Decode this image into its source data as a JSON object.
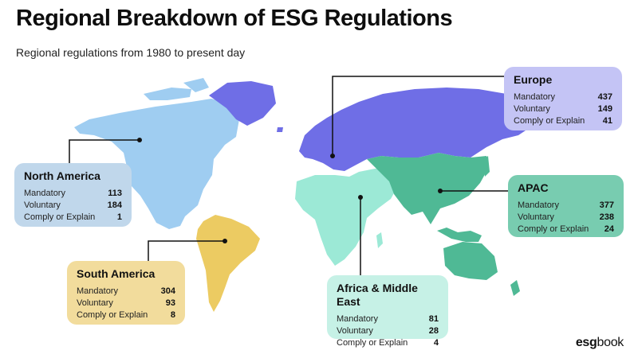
{
  "title": "Regional Breakdown of ESG Regulations",
  "subtitle": "Regional regulations from 1980 to present day",
  "logo": {
    "bold": "esg",
    "light": "book"
  },
  "colors": {
    "north_america": "#9fcdf1",
    "europe": "#6f6ee6",
    "apac": "#4fb995",
    "africa_middle_east": "#9ce9d6",
    "south_america": "#eccb62"
  },
  "regions": [
    {
      "key": "north_america",
      "name": "North America",
      "rows": [
        {
          "label": "Mandatory",
          "value": "113"
        },
        {
          "label": "Voluntary",
          "value": "184"
        },
        {
          "label": "Comply or Explain",
          "value": "1"
        }
      ]
    },
    {
      "key": "europe",
      "name": "Europe",
      "rows": [
        {
          "label": "Mandatory",
          "value": "437"
        },
        {
          "label": "Voluntary",
          "value": "149"
        },
        {
          "label": "Comply or Explain",
          "value": "41"
        }
      ]
    },
    {
      "key": "apac",
      "name": "APAC",
      "rows": [
        {
          "label": "Mandatory",
          "value": "377"
        },
        {
          "label": "Voluntary",
          "value": "238"
        },
        {
          "label": "Comply or Explain",
          "value": "24"
        }
      ]
    },
    {
      "key": "south_america",
      "name": "South America",
      "rows": [
        {
          "label": "Mandatory",
          "value": "304"
        },
        {
          "label": "Voluntary",
          "value": "93"
        },
        {
          "label": "Comply or Explain",
          "value": "8"
        }
      ]
    },
    {
      "key": "africa_middle_east",
      "name": "Africa & Middle East",
      "rows": [
        {
          "label": "Mandatory",
          "value": "81"
        },
        {
          "label": "Voluntary",
          "value": "28"
        },
        {
          "label": "Comply or Explain",
          "value": "4"
        }
      ]
    }
  ]
}
